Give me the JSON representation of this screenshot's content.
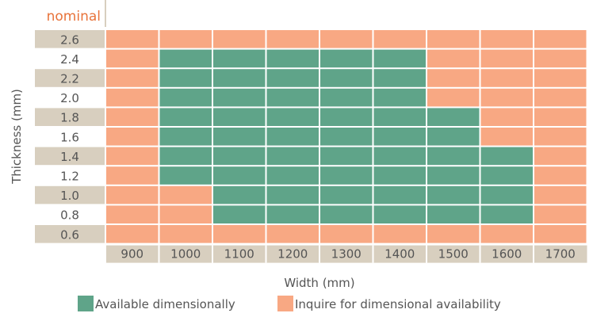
{
  "chart_data": {
    "type": "heatmap",
    "corner_label": "nominal",
    "xlabel": "Width (mm)",
    "ylabel": "Thickness (mm)",
    "x": [
      "900",
      "1000",
      "1100",
      "1200",
      "1300",
      "1400",
      "1500",
      "1600",
      "1700"
    ],
    "y": [
      "2.6",
      "2.4",
      "2.2",
      "2.0",
      "1.8",
      "1.6",
      "1.4",
      "1.2",
      "1.0",
      "0.8",
      "0.6"
    ],
    "categories": [
      {
        "key": "A",
        "name": "Available dimensionally",
        "color": "#5fa489"
      },
      {
        "key": "I",
        "name": "Inquire for dimensional availability",
        "color": "#f8a883"
      }
    ],
    "cells": [
      [
        "I",
        "I",
        "I",
        "I",
        "I",
        "I",
        "I",
        "I",
        "I"
      ],
      [
        "I",
        "A",
        "A",
        "A",
        "A",
        "A",
        "I",
        "I",
        "I"
      ],
      [
        "I",
        "A",
        "A",
        "A",
        "A",
        "A",
        "I",
        "I",
        "I"
      ],
      [
        "I",
        "A",
        "A",
        "A",
        "A",
        "A",
        "I",
        "I",
        "I"
      ],
      [
        "I",
        "A",
        "A",
        "A",
        "A",
        "A",
        "A",
        "I",
        "I"
      ],
      [
        "I",
        "A",
        "A",
        "A",
        "A",
        "A",
        "A",
        "I",
        "I"
      ],
      [
        "I",
        "A",
        "A",
        "A",
        "A",
        "A",
        "A",
        "A",
        "I"
      ],
      [
        "I",
        "A",
        "A",
        "A",
        "A",
        "A",
        "A",
        "A",
        "I"
      ],
      [
        "I",
        "I",
        "A",
        "A",
        "A",
        "A",
        "A",
        "A",
        "I"
      ],
      [
        "I",
        "I",
        "A",
        "A",
        "A",
        "A",
        "A",
        "A",
        "I"
      ],
      [
        "I",
        "I",
        "I",
        "I",
        "I",
        "I",
        "I",
        "I",
        "I"
      ]
    ],
    "colors": {
      "available": "#5fa489",
      "inquire": "#f8a883",
      "label_band": "#d8cfbf",
      "accent": "#e8733a",
      "text": "#555555"
    }
  }
}
